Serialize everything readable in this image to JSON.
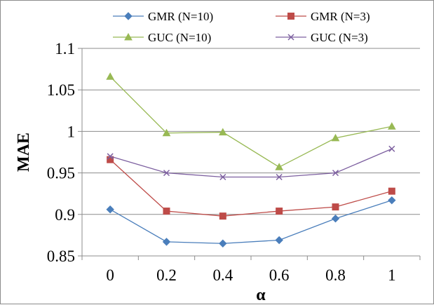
{
  "chart_data": {
    "type": "line",
    "x": [
      0,
      0.2,
      0.4,
      0.6,
      0.8,
      1
    ],
    "x_tick_labels": [
      "0",
      "0.2",
      "0.4",
      "0.6",
      "0.8",
      "1"
    ],
    "y_tick_values": [
      0.85,
      0.9,
      0.95,
      1,
      1.05,
      1.1
    ],
    "y_tick_labels": [
      "0.85",
      "0.9",
      "0.95",
      "1",
      "1.05",
      "1.1"
    ],
    "ylim": [
      0.85,
      1.1
    ],
    "xlabel": "α",
    "ylabel": "MAE",
    "grid": "horizontal",
    "legend_position": "top",
    "series": [
      {
        "name": "GMR (N=10)",
        "marker": "diamond",
        "color": "#4a7ebb",
        "values": [
          0.906,
          0.867,
          0.865,
          0.869,
          0.895,
          0.917
        ]
      },
      {
        "name": "GMR (N=3)",
        "marker": "square",
        "color": "#be4b48",
        "values": [
          0.966,
          0.904,
          0.898,
          0.904,
          0.909,
          0.928
        ]
      },
      {
        "name": "GUC (N=10)",
        "marker": "triangle",
        "color": "#98b954",
        "values": [
          1.066,
          0.998,
          0.999,
          0.957,
          0.992,
          1.006
        ]
      },
      {
        "name": "GUC (N=3)",
        "marker": "x",
        "color": "#7d60a0",
        "values": [
          0.97,
          0.95,
          0.945,
          0.945,
          0.95,
          0.979
        ]
      }
    ]
  }
}
